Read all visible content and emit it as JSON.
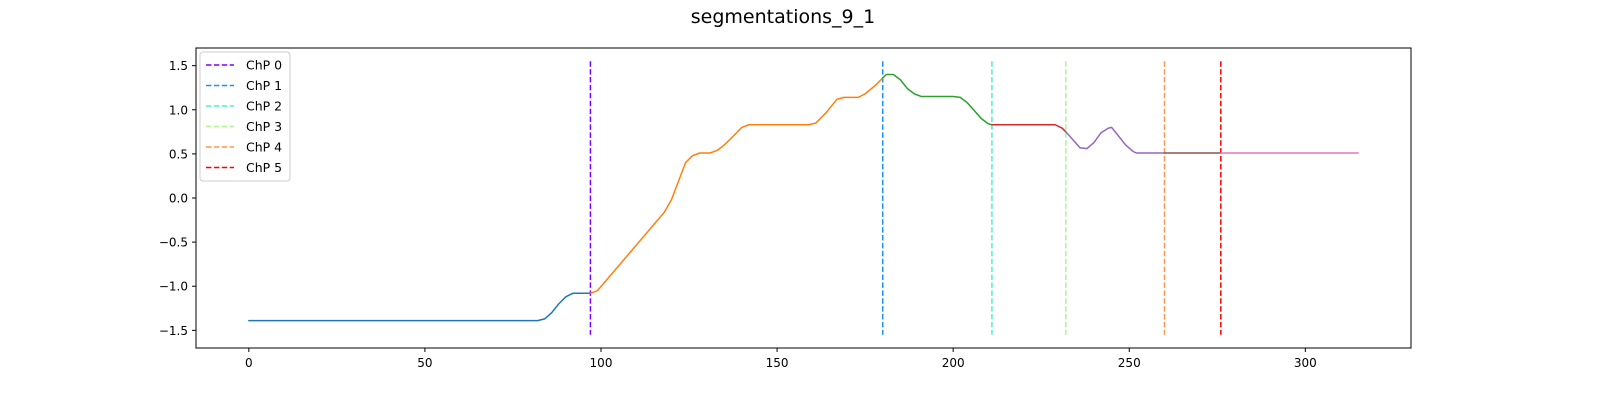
{
  "chart_data": {
    "type": "line",
    "title": "segmentations_9_1",
    "xlim": [
      -15,
      330
    ],
    "ylim": [
      -1.7,
      1.7
    ],
    "xticks": [
      0,
      50,
      100,
      150,
      200,
      250,
      300
    ],
    "yticks": [
      -1.5,
      -1.0,
      -0.5,
      0.0,
      0.5,
      1.0,
      1.5
    ],
    "grid": false,
    "legend_position": "top-left",
    "segments": [
      {
        "color": "#1f77b4",
        "points": [
          [
            0,
            -1.39
          ],
          [
            82,
            -1.39
          ],
          [
            84,
            -1.37
          ],
          [
            86,
            -1.3
          ],
          [
            88,
            -1.2
          ],
          [
            90,
            -1.12
          ],
          [
            92,
            -1.08
          ],
          [
            95,
            -1.08
          ],
          [
            97,
            -1.08
          ]
        ]
      },
      {
        "color": "#ff7f0e",
        "points": [
          [
            97,
            -1.08
          ],
          [
            99,
            -1.05
          ],
          [
            118,
            -0.16
          ],
          [
            120,
            -0.02
          ],
          [
            124,
            0.4
          ],
          [
            126,
            0.48
          ],
          [
            128,
            0.51
          ],
          [
            131,
            0.51
          ],
          [
            133,
            0.54
          ],
          [
            135,
            0.6
          ],
          [
            138,
            0.72
          ],
          [
            140,
            0.8
          ],
          [
            142,
            0.83
          ],
          [
            159,
            0.83
          ],
          [
            161,
            0.85
          ],
          [
            164,
            0.97
          ],
          [
            167,
            1.12
          ],
          [
            169,
            1.14
          ],
          [
            173,
            1.14
          ],
          [
            175,
            1.18
          ],
          [
            178,
            1.28
          ],
          [
            180,
            1.36
          ]
        ]
      },
      {
        "color": "#2ca02c",
        "points": [
          [
            180,
            1.36
          ],
          [
            181,
            1.4
          ],
          [
            183,
            1.4
          ],
          [
            185,
            1.34
          ],
          [
            187,
            1.24
          ],
          [
            189,
            1.18
          ],
          [
            191,
            1.15
          ],
          [
            200,
            1.15
          ],
          [
            202,
            1.14
          ],
          [
            204,
            1.08
          ],
          [
            206,
            0.99
          ],
          [
            208,
            0.9
          ],
          [
            210,
            0.84
          ],
          [
            211,
            0.83
          ]
        ]
      },
      {
        "color": "#d62728",
        "points": [
          [
            211,
            0.83
          ],
          [
            229,
            0.83
          ],
          [
            231,
            0.79
          ],
          [
            232,
            0.75
          ]
        ]
      },
      {
        "color": "#9467bd",
        "points": [
          [
            232,
            0.75
          ],
          [
            234,
            0.66
          ],
          [
            236,
            0.57
          ],
          [
            238,
            0.56
          ],
          [
            240,
            0.63
          ],
          [
            242,
            0.74
          ],
          [
            244,
            0.79
          ],
          [
            245,
            0.8
          ],
          [
            247,
            0.7
          ],
          [
            249,
            0.6
          ],
          [
            251,
            0.53
          ],
          [
            252,
            0.51
          ],
          [
            260,
            0.51
          ]
        ]
      },
      {
        "color": "#8c564b",
        "points": [
          [
            260,
            0.51
          ],
          [
            276,
            0.51
          ]
        ]
      },
      {
        "color": "#e377c2",
        "points": [
          [
            276,
            0.51
          ],
          [
            315,
            0.51
          ]
        ]
      }
    ],
    "changepoints": [
      {
        "label": "ChP 0",
        "x": 97,
        "color": "#8000ff"
      },
      {
        "label": "ChP 1",
        "x": 180,
        "color": "#1996f3"
      },
      {
        "label": "ChP 2",
        "x": 211,
        "color": "#4cf2ce"
      },
      {
        "label": "ChP 3",
        "x": 232,
        "color": "#b2f396"
      },
      {
        "label": "ChP 4",
        "x": 260,
        "color": "#ff964f"
      },
      {
        "label": "ChP 5",
        "x": 276,
        "color": "#ff0000"
      }
    ],
    "changepoint_yrange": [
      -1.55,
      1.55
    ]
  }
}
